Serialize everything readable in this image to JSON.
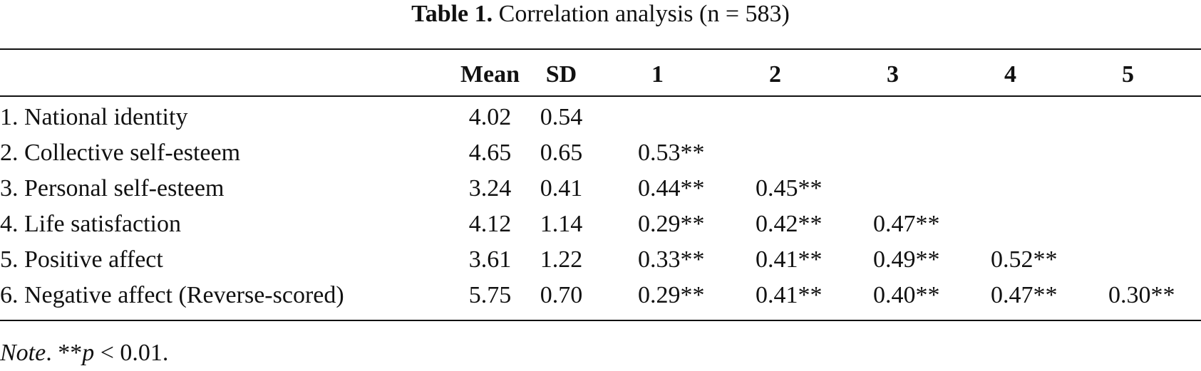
{
  "caption": {
    "label": "Table 1.",
    "text": "Correlation analysis (n = 583)"
  },
  "headers": [
    "",
    "Mean",
    "SD",
    "1",
    "2",
    "3",
    "4",
    "5"
  ],
  "rows": [
    {
      "variable": "1. National identity",
      "mean": "4.02",
      "sd": "0.54",
      "c1": "",
      "c2": "",
      "c3": "",
      "c4": "",
      "c5": ""
    },
    {
      "variable": "2. Collective self-esteem",
      "mean": "4.65",
      "sd": "0.65",
      "c1": "0.53**",
      "c2": "",
      "c3": "",
      "c4": "",
      "c5": ""
    },
    {
      "variable": "3. Personal self-esteem",
      "mean": "3.24",
      "sd": "0.41",
      "c1": "0.44**",
      "c2": "0.45**",
      "c3": "",
      "c4": "",
      "c5": ""
    },
    {
      "variable": "4. Life satisfaction",
      "mean": "4.12",
      "sd": "1.14",
      "c1": "0.29**",
      "c2": "0.42**",
      "c3": "0.47**",
      "c4": "",
      "c5": ""
    },
    {
      "variable": "5. Positive affect",
      "mean": "3.61",
      "sd": "1.22",
      "c1": "0.33**",
      "c2": "0.41**",
      "c3": "0.49**",
      "c4": "0.52**",
      "c5": ""
    },
    {
      "variable": "6. Negative affect (Reverse-scored)",
      "mean": "5.75",
      "sd": "0.70",
      "c1": "0.29**",
      "c2": "0.41**",
      "c3": "0.40**",
      "c4": "0.47**",
      "c5": "0.30**"
    }
  ],
  "note": {
    "label": "Note",
    "prefix": ". **",
    "p": "p",
    "suffix": " < 0.01."
  }
}
